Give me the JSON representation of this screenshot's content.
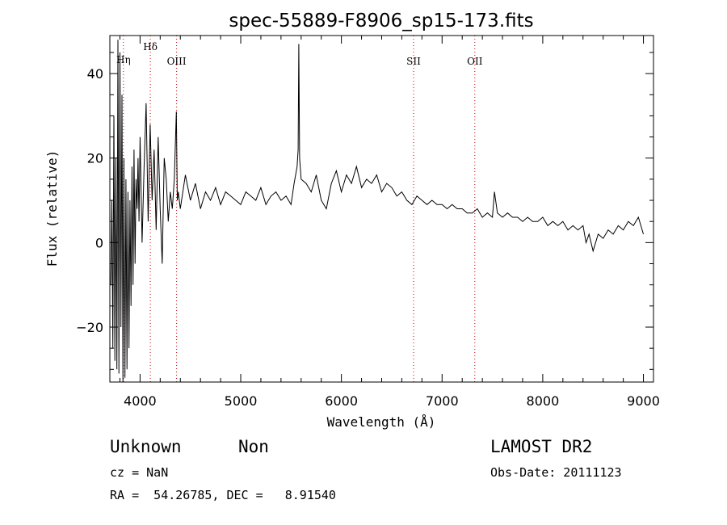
{
  "chart_data": {
    "type": "line",
    "title": "spec-55889-F8906_sp15-173.fits",
    "xlabel": "Wavelength (Å)",
    "ylabel": "Flux (relative)",
    "xlim": [
      3700,
      9100
    ],
    "ylim": [
      -33,
      49
    ],
    "x_ticks": [
      4000,
      5000,
      6000,
      7000,
      8000,
      9000
    ],
    "y_ticks": [
      -20,
      0,
      20,
      40
    ],
    "grid": false,
    "line_color": "#000000",
    "marker_color": "#cc0000",
    "spectral_lines": [
      {
        "name": "Hη",
        "wavelength": 3835
      },
      {
        "name": "Hδ",
        "wavelength": 4102
      },
      {
        "name": "OIII",
        "wavelength": 4363
      },
      {
        "name": "SII",
        "wavelength": 6717
      },
      {
        "name": "OII",
        "wavelength": 7325
      }
    ],
    "flux_spectrum": {
      "x": [
        3710,
        3720,
        3730,
        3740,
        3750,
        3760,
        3770,
        3780,
        3790,
        3800,
        3810,
        3820,
        3830,
        3840,
        3850,
        3860,
        3870,
        3880,
        3890,
        3900,
        3910,
        3920,
        3930,
        3940,
        3950,
        3960,
        3970,
        3980,
        3990,
        4000,
        4020,
        4040,
        4060,
        4080,
        4100,
        4120,
        4140,
        4160,
        4180,
        4200,
        4220,
        4240,
        4260,
        4280,
        4300,
        4320,
        4340,
        4360,
        4370,
        4380,
        4400,
        4450,
        4500,
        4550,
        4600,
        4650,
        4700,
        4750,
        4800,
        4850,
        4900,
        4950,
        5000,
        5050,
        5100,
        5150,
        5200,
        5250,
        5300,
        5350,
        5400,
        5450,
        5500,
        5530,
        5560,
        5570,
        5577,
        5585,
        5600,
        5650,
        5700,
        5750,
        5800,
        5850,
        5900,
        5950,
        6000,
        6050,
        6100,
        6150,
        6200,
        6250,
        6300,
        6350,
        6400,
        6450,
        6500,
        6550,
        6600,
        6650,
        6700,
        6750,
        6800,
        6850,
        6900,
        6950,
        7000,
        7050,
        7100,
        7150,
        7200,
        7250,
        7300,
        7350,
        7400,
        7450,
        7500,
        7520,
        7550,
        7600,
        7650,
        7700,
        7750,
        7800,
        7850,
        7900,
        7950,
        8000,
        8050,
        8100,
        8150,
        8200,
        8250,
        8300,
        8350,
        8400,
        8430,
        8460,
        8500,
        8550,
        8600,
        8650,
        8700,
        8750,
        8800,
        8850,
        8900,
        8950,
        9000
      ],
      "y": [
        -10,
        10,
        -25,
        30,
        -28,
        20,
        -30,
        48,
        -31,
        45,
        -20,
        35,
        -33,
        20,
        -32,
        15,
        -30,
        12,
        -25,
        10,
        -15,
        18,
        -10,
        22,
        -5,
        15,
        8,
        20,
        5,
        25,
        0,
        18,
        33,
        5,
        28,
        10,
        22,
        3,
        25,
        8,
        -5,
        20,
        15,
        5,
        12,
        8,
        15,
        31,
        10,
        12,
        8,
        16,
        10,
        14,
        8,
        12,
        10,
        13,
        9,
        12,
        11,
        10,
        9,
        12,
        11,
        10,
        13,
        9,
        11,
        12,
        10,
        11,
        9,
        14,
        18,
        22,
        47,
        20,
        15,
        14,
        12,
        16,
        10,
        8,
        14,
        17,
        12,
        16,
        14,
        18,
        13,
        15,
        14,
        16,
        12,
        14,
        13,
        11,
        12,
        10,
        9,
        11,
        10,
        9,
        10,
        9,
        9,
        8,
        9,
        8,
        8,
        7,
        7,
        8,
        6,
        7,
        6,
        12,
        7,
        6,
        7,
        6,
        6,
        5,
        6,
        5,
        5,
        6,
        4,
        5,
        4,
        5,
        3,
        4,
        3,
        4,
        0,
        2,
        -2,
        2,
        1,
        3,
        2,
        4,
        3,
        5,
        4,
        6,
        2
      ]
    }
  },
  "info": {
    "object_class": "Unknown",
    "subclass": "Non",
    "survey": "LAMOST DR2",
    "redshift": "cz = NaN",
    "obs_date": "Obs-Date: 20111123",
    "coordinates": "RA =  54.26785, DEC =   8.91540"
  }
}
